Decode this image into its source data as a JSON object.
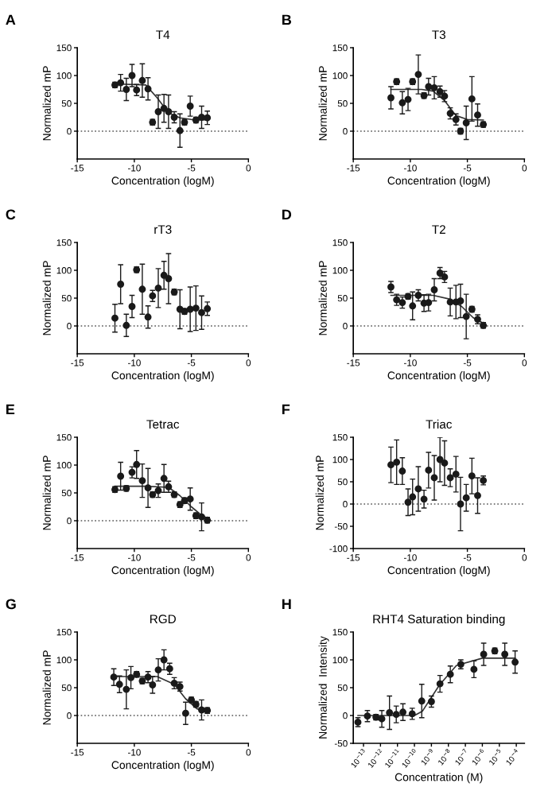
{
  "chart_data": [
    {
      "type": "scatter",
      "title": "T4",
      "xlabel": "Concentration (logM)",
      "ylabel": "Normalized mP",
      "annotations": [
        "A"
      ],
      "xlim": [
        -15,
        0
      ],
      "xticks": [
        -15,
        -10,
        -5,
        0
      ],
      "ylim": [
        -50,
        150
      ],
      "yticks": [
        0,
        50,
        100,
        150
      ],
      "ref_lines": [
        {
          "axis": "y",
          "value": 0,
          "line_style": "dotted",
          "color": "#555555"
        }
      ],
      "series": [
        {
          "color": "#1a1a1a",
          "marker": "circle",
          "x": [
            -11.7,
            -11.2,
            -10.7,
            -10.2,
            -9.8,
            -9.3,
            -8.8,
            -8.4,
            -7.9,
            -7.4,
            -7.0,
            -6.5,
            -6.0,
            -5.6,
            -5.1,
            -4.6,
            -4.1,
            -3.6
          ],
          "values": [
            83,
            87,
            75,
            100,
            74,
            91,
            76,
            16,
            35,
            41,
            35,
            25,
            1,
            16,
            45,
            20,
            25,
            24
          ],
          "errors": [
            5,
            15,
            20,
            20,
            10,
            30,
            20,
            5,
            30,
            25,
            30,
            10,
            30,
            5,
            18,
            5,
            20,
            12
          ]
        },
        {
          "type": "line",
          "color": "#333333",
          "x": [
            -11.7,
            -9,
            -8,
            -7,
            -6,
            -5,
            -3.6
          ],
          "values": [
            85,
            83,
            60,
            33,
            24,
            21,
            20
          ]
        }
      ]
    },
    {
      "type": "scatter",
      "title": "T3",
      "xlabel": "Concentration (logM)",
      "ylabel": "Normalized mP",
      "annotations": [
        "B"
      ],
      "xlim": [
        -15,
        0
      ],
      "xticks": [
        -15,
        -10,
        -5,
        0
      ],
      "ylim": [
        -50,
        150
      ],
      "yticks": [
        0,
        50,
        100,
        150
      ],
      "ref_lines": [
        {
          "axis": "y",
          "value": 0,
          "line_style": "dotted",
          "color": "#555555"
        }
      ],
      "series": [
        {
          "color": "#1a1a1a",
          "marker": "circle",
          "x": [
            -11.7,
            -11.2,
            -10.7,
            -10.2,
            -9.8,
            -9.3,
            -8.8,
            -8.4,
            -7.9,
            -7.4,
            -7.0,
            -6.5,
            -6.0,
            -5.6,
            -5.1,
            -4.6,
            -4.1,
            -3.6
          ],
          "values": [
            60,
            89,
            51,
            57,
            89,
            102,
            64,
            80,
            78,
            71,
            63,
            32,
            21,
            0,
            15,
            58,
            29,
            12
          ],
          "errors": [
            20,
            5,
            20,
            20,
            5,
            35,
            5,
            15,
            20,
            10,
            10,
            10,
            10,
            5,
            30,
            40,
            20,
            5
          ]
        },
        {
          "type": "line",
          "color": "#333333",
          "x": [
            -11.7,
            -9,
            -8,
            -7,
            -6,
            -5,
            -3.6
          ],
          "values": [
            75,
            75,
            72,
            55,
            28,
            21,
            20
          ]
        }
      ]
    },
    {
      "type": "scatter",
      "title": "rT3",
      "xlabel": "Concentration (logM)",
      "ylabel": "Normalized mP",
      "annotations": [
        "C"
      ],
      "xlim": [
        -15,
        0
      ],
      "xticks": [
        -15,
        -10,
        -5,
        0
      ],
      "ylim": [
        -50,
        150
      ],
      "yticks": [
        0,
        50,
        100,
        150
      ],
      "ref_lines": [
        {
          "axis": "y",
          "value": 0,
          "line_style": "dotted",
          "color": "#555555"
        }
      ],
      "series": [
        {
          "color": "#1a1a1a",
          "marker": "circle",
          "x": [
            -11.7,
            -11.2,
            -10.7,
            -10.2,
            -9.8,
            -9.3,
            -8.8,
            -8.4,
            -7.9,
            -7.4,
            -7.0,
            -6.5,
            -6.0,
            -5.6,
            -5.1,
            -4.6,
            -4.1,
            -3.6
          ],
          "values": [
            14,
            75,
            1,
            35,
            101,
            66,
            16,
            54,
            68,
            91,
            85,
            61,
            30,
            26,
            30,
            32,
            24,
            31
          ],
          "errors": [
            25,
            35,
            20,
            20,
            5,
            45,
            20,
            10,
            35,
            25,
            45,
            5,
            35,
            5,
            40,
            40,
            30,
            12
          ]
        }
      ]
    },
    {
      "type": "scatter",
      "title": "T2",
      "xlabel": "Concentration (logM)",
      "ylabel": "Normalized mP",
      "annotations": [
        "D"
      ],
      "xlim": [
        -15,
        0
      ],
      "xticks": [
        -15,
        -10,
        -5,
        0
      ],
      "ylim": [
        -50,
        150
      ],
      "yticks": [
        0,
        50,
        100,
        150
      ],
      "ref_lines": [
        {
          "axis": "y",
          "value": 0,
          "line_style": "dotted",
          "color": "#555555"
        }
      ],
      "series": [
        {
          "color": "#1a1a1a",
          "marker": "circle",
          "x": [
            -11.7,
            -11.2,
            -10.7,
            -10.2,
            -9.8,
            -9.3,
            -8.8,
            -8.4,
            -7.9,
            -7.4,
            -7.0,
            -6.5,
            -6.0,
            -5.6,
            -5.1,
            -4.6,
            -4.1,
            -3.6
          ],
          "values": [
            70,
            47,
            42,
            53,
            36,
            55,
            41,
            42,
            65,
            95,
            88,
            43,
            43,
            45,
            17,
            30,
            12,
            1
          ],
          "errors": [
            10,
            10,
            10,
            5,
            25,
            10,
            15,
            15,
            20,
            10,
            10,
            25,
            30,
            30,
            40,
            5,
            8,
            5
          ]
        },
        {
          "type": "line",
          "color": "#333333",
          "x": [
            -11.7,
            -8,
            -6.5,
            -5.5,
            -4.5,
            -3.6
          ],
          "values": [
            55,
            55,
            48,
            35,
            15,
            5
          ]
        }
      ]
    },
    {
      "type": "scatter",
      "title": "Tetrac",
      "xlabel": "Concentration (logM)",
      "ylabel": "Normalized mP",
      "annotations": [
        "E"
      ],
      "xlim": [
        -15,
        0
      ],
      "xticks": [
        -15,
        -10,
        -5,
        0
      ],
      "ylim": [
        -50,
        150
      ],
      "yticks": [
        0,
        50,
        100,
        150
      ],
      "ref_lines": [
        {
          "axis": "y",
          "value": 0,
          "line_style": "dotted",
          "color": "#555555"
        }
      ],
      "series": [
        {
          "color": "#1a1a1a",
          "marker": "circle",
          "x": [
            -11.7,
            -11.2,
            -10.7,
            -10.2,
            -9.8,
            -9.3,
            -8.8,
            -8.4,
            -7.9,
            -7.4,
            -7.0,
            -6.5,
            -6.0,
            -5.6,
            -5.1,
            -4.6,
            -4.1,
            -3.6
          ],
          "values": [
            56,
            80,
            58,
            87,
            101,
            72,
            59,
            47,
            54,
            76,
            61,
            47,
            29,
            36,
            39,
            9,
            7,
            1
          ],
          "errors": [
            5,
            25,
            5,
            10,
            25,
            30,
            35,
            5,
            12,
            25,
            10,
            5,
            5,
            5,
            20,
            5,
            25,
            5
          ]
        },
        {
          "type": "line",
          "color": "#333333",
          "x": [
            -11.7,
            -9,
            -7,
            -6,
            -5,
            -4,
            -3.6
          ],
          "values": [
            62,
            62,
            60,
            45,
            25,
            8,
            5
          ]
        }
      ]
    },
    {
      "type": "scatter",
      "title": "Triac",
      "xlabel": "Concentration (logM)",
      "ylabel": "Normalized mP",
      "annotations": [
        "F"
      ],
      "xlim": [
        -15,
        0
      ],
      "xticks": [
        -15,
        -10,
        -5,
        0
      ],
      "ylim": [
        -100,
        150
      ],
      "yticks": [
        -100,
        -50,
        0,
        50,
        100,
        150
      ],
      "ref_lines": [
        {
          "axis": "y",
          "value": 0,
          "line_style": "dotted",
          "color": "#555555"
        }
      ],
      "series": [
        {
          "color": "#1a1a1a",
          "marker": "circle",
          "x": [
            -11.7,
            -11.2,
            -10.7,
            -10.2,
            -9.8,
            -9.3,
            -8.8,
            -8.4,
            -7.9,
            -7.4,
            -7.0,
            -6.5,
            -6.0,
            -5.6,
            -5.1,
            -4.6,
            -4.1,
            -3.6
          ],
          "values": [
            88,
            94,
            74,
            4,
            16,
            34,
            11,
            76,
            59,
            100,
            92,
            59,
            67,
            0,
            14,
            63,
            19,
            53
          ],
          "errors": [
            40,
            50,
            30,
            30,
            40,
            50,
            20,
            40,
            50,
            50,
            50,
            20,
            40,
            60,
            30,
            40,
            40,
            10
          ]
        }
      ]
    },
    {
      "type": "scatter",
      "title": "RGD",
      "xlabel": "Concentration (logM)",
      "ylabel": "Normalized mP",
      "annotations": [
        "G"
      ],
      "xlim": [
        -15,
        0
      ],
      "xticks": [
        -15,
        -10,
        -5,
        0
      ],
      "ylim": [
        -50,
        150
      ],
      "yticks": [
        0,
        50,
        100,
        150
      ],
      "ref_lines": [
        {
          "axis": "y",
          "value": 0,
          "line_style": "dotted",
          "color": "#555555"
        }
      ],
      "series": [
        {
          "color": "#1a1a1a",
          "marker": "circle",
          "x": [
            -11.8,
            -11.3,
            -10.7,
            -10.3,
            -9.8,
            -9.3,
            -8.8,
            -8.4,
            -7.9,
            -7.4,
            -6.9,
            -6.5,
            -6.0,
            -5.5,
            -5.0,
            -4.6,
            -4.1,
            -3.6
          ],
          "values": [
            69,
            56,
            47,
            68,
            74,
            62,
            69,
            55,
            82,
            100,
            84,
            58,
            52,
            4,
            28,
            20,
            10,
            9
          ],
          "errors": [
            15,
            15,
            35,
            20,
            5,
            5,
            10,
            15,
            20,
            18,
            10,
            10,
            8,
            20,
            5,
            5,
            18,
            5
          ]
        },
        {
          "type": "line",
          "color": "#333333",
          "x": [
            -11.8,
            -8,
            -6.5,
            -5.5,
            -4.5,
            -3.6
          ],
          "values": [
            70,
            70,
            56,
            30,
            12,
            8
          ]
        }
      ]
    },
    {
      "type": "scatter",
      "title": "RHT4 Saturation binding",
      "xlabel": "Concentration (M)",
      "ylabel": "Normalized  Intensity",
      "annotations": [
        "H"
      ],
      "log": "x",
      "xlim": [
        2.5e-14,
        0.0003
      ],
      "xticks": [
        {
          "value": 1e-13,
          "label": "10$^{−13}$"
        },
        {
          "value": 1e-12,
          "label": "10$^{−12}$"
        },
        {
          "value": 1e-11,
          "label": "10$^{−11}$"
        },
        {
          "value": 1e-10,
          "label": "10$^{−10}$"
        },
        {
          "value": 1e-09,
          "label": "10$^{−9}$"
        },
        {
          "value": 1e-08,
          "label": "10$^{−8}$"
        },
        {
          "value": 1e-07,
          "label": "10$^{−7}$"
        },
        {
          "value": 1e-06,
          "label": "10$^{−6}$"
        },
        {
          "value": 1e-05,
          "label": "10$^{−5}$"
        },
        {
          "value": 0.0001,
          "label": "10$^{−4}$"
        }
      ],
      "ylim": [
        -50,
        150
      ],
      "yticks": [
        -50,
        0,
        50,
        100,
        150
      ],
      "series": [
        {
          "color": "#1a1a1a",
          "marker": "circle",
          "x": [
            4.7e-14,
            1.7e-13,
            5.4e-13,
            1.2e-12,
            3.4e-12,
            8.5e-12,
            2.1e-11,
            7.4e-11,
            2.7e-10,
            1e-09,
            3.2e-09,
            1.3e-08,
            5.4e-08,
            3.2e-07,
            1.2e-06,
            5.4e-06,
            2.1e-05,
            8.5e-05
          ],
          "values": [
            -12,
            -1,
            -3,
            -6,
            5,
            2,
            6,
            3,
            26,
            25,
            57,
            74,
            92,
            83,
            110,
            116,
            110,
            96
          ],
          "errors": [
            8,
            10,
            5,
            15,
            30,
            15,
            15,
            10,
            30,
            10,
            15,
            15,
            8,
            15,
            20,
            5,
            20,
            20
          ]
        },
        {
          "type": "line",
          "color": "#333333",
          "x": [
            4.7e-14,
            1e-10,
            3e-10,
            3e-09,
            3e-08,
            1e-06,
            8.5e-05
          ],
          "values": [
            0,
            0,
            8,
            55,
            90,
            103,
            103
          ]
        }
      ]
    }
  ]
}
